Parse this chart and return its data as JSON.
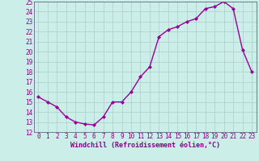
{
  "x": [
    0,
    1,
    2,
    3,
    4,
    5,
    6,
    7,
    8,
    9,
    10,
    11,
    12,
    13,
    14,
    15,
    16,
    17,
    18,
    19,
    20,
    21,
    22,
    23
  ],
  "y": [
    15.5,
    15.0,
    14.5,
    13.5,
    13.0,
    12.8,
    12.7,
    13.5,
    15.0,
    15.0,
    16.0,
    17.5,
    18.5,
    21.5,
    22.2,
    22.5,
    23.0,
    23.3,
    24.3,
    24.5,
    25.0,
    24.3,
    20.2,
    18.0
  ],
  "line_color": "#990099",
  "marker": "D",
  "marker_size": 2.0,
  "bg_color": "#cceee8",
  "grid_color": "#aacccc",
  "xlabel": "Windchill (Refroidissement éolien,°C)",
  "ylim": [
    12,
    25
  ],
  "xlim": [
    -0.5,
    23.5
  ],
  "yticks": [
    12,
    13,
    14,
    15,
    16,
    17,
    18,
    19,
    20,
    21,
    22,
    23,
    24,
    25
  ],
  "xticks": [
    0,
    1,
    2,
    3,
    4,
    5,
    6,
    7,
    8,
    9,
    10,
    11,
    12,
    13,
    14,
    15,
    16,
    17,
    18,
    19,
    20,
    21,
    22,
    23
  ],
  "tick_color": "#880088",
  "axis_color": "#666688",
  "font_size": 5.5,
  "xlabel_fontsize": 6.0,
  "linewidth": 1.0
}
